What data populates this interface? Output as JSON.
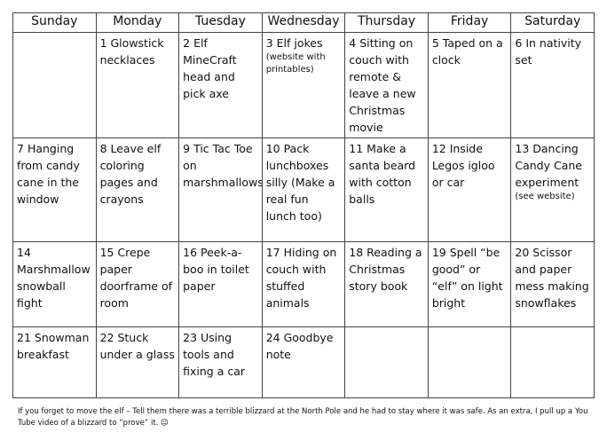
{
  "calendar": {
    "headers": [
      "Sunday",
      "Monday",
      "Tuesday",
      "Wednesday",
      "Thursday",
      "Friday",
      "Saturday"
    ],
    "rows": [
      [
        null,
        {
          "day": "1",
          "text": "Glowstick necklaces"
        },
        {
          "day": "2",
          "text": "Elf MineCraft head and pick axe"
        },
        {
          "day": "3",
          "text": "Elf jokes",
          "note": "(website with printables)"
        },
        {
          "day": "4",
          "text": "Sitting on couch with remote & leave a new Christmas movie"
        },
        {
          "day": "5",
          "text": "Taped on a clock"
        },
        {
          "day": "6",
          "text": "In nativity set"
        }
      ],
      [
        {
          "day": "7",
          "text": "Hanging from candy cane in the window"
        },
        {
          "day": "8",
          "text": "Leave elf coloring pages and crayons"
        },
        {
          "day": "9",
          "text": "Tic Tac Toe on marshmallows"
        },
        {
          "day": "10",
          "text": "Pack lunchboxes silly (Make a real fun lunch too)"
        },
        {
          "day": "11",
          "text": "Make a santa beard with cotton balls"
        },
        {
          "day": "12",
          "text": "Inside Legos igloo or car"
        },
        {
          "day": "13",
          "text": "Dancing Candy Cane experiment",
          "note": "(see website)"
        }
      ],
      [
        {
          "day": "14",
          "text": "Marshmallow snowball fight"
        },
        {
          "day": "15",
          "text": "Crepe paper doorframe of room"
        },
        {
          "day": "16",
          "text": "Peek-a-boo in toilet paper"
        },
        {
          "day": "17",
          "text": "Hiding on couch with stuffed animals"
        },
        {
          "day": "18",
          "text": "Reading a Christmas story book"
        },
        {
          "day": "19",
          "text": "Spell “be good” or “elf” on light bright"
        },
        {
          "day": "20",
          "text": "Scissor and paper mess making snowflakes"
        }
      ],
      [
        {
          "day": "21",
          "text": "Snowman breakfast"
        },
        {
          "day": "22",
          "text": "Stuck under a glass"
        },
        {
          "day": "23",
          "text": "Using tools and fixing a car"
        },
        {
          "day": "24",
          "text": "Goodbye note"
        },
        null,
        null,
        null
      ]
    ]
  },
  "footer": "If you forget to move the elf – Tell them there was a terrible blizzard at the North Pole and he had to stay where it was safe. As an extra, I pull up a You Tube video of a blizzard to “prove” it. ☺"
}
